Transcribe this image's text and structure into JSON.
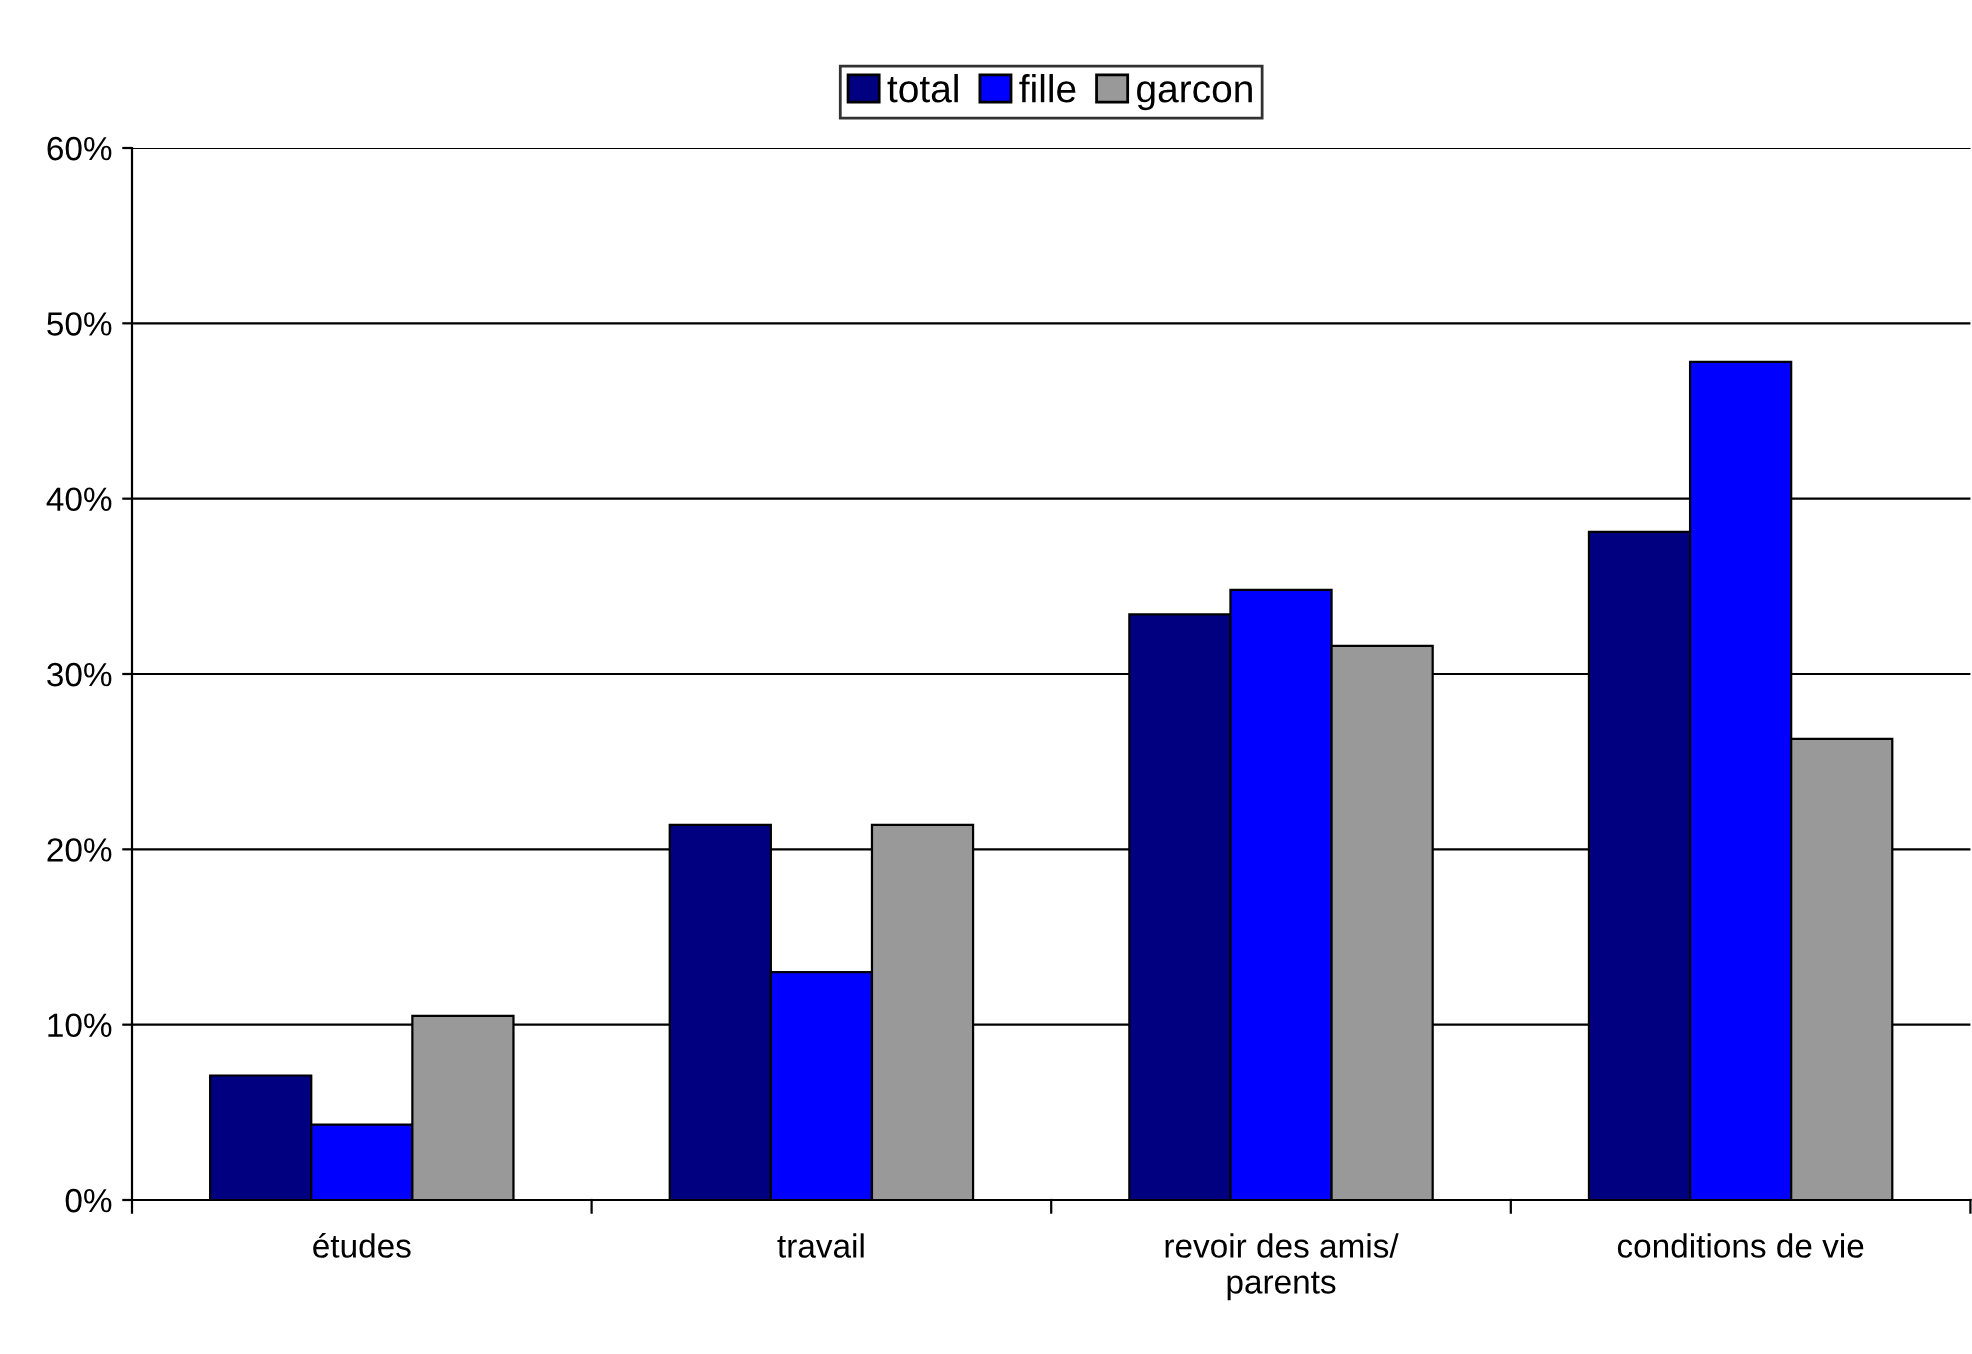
{
  "chart_data": {
    "type": "bar",
    "categories": [
      "études",
      "travail",
      "revoir des amis/\nparents",
      "conditions de vie"
    ],
    "series": [
      {
        "name": "total",
        "color": "#000080",
        "values": [
          7.1,
          21.4,
          33.4,
          38.1
        ]
      },
      {
        "name": "fille",
        "color": "#0000ff",
        "values": [
          4.3,
          13.0,
          34.8,
          47.8
        ]
      },
      {
        "name": "garcon",
        "color": "#999999",
        "values": [
          10.5,
          21.4,
          31.6,
          26.3
        ]
      }
    ],
    "ylim": [
      0,
      60
    ],
    "yticks": [
      {
        "value": 0,
        "label": "0%"
      },
      {
        "value": 10,
        "label": "10%"
      },
      {
        "value": 20,
        "label": "20%"
      },
      {
        "value": 30,
        "label": "30%"
      },
      {
        "value": 40,
        "label": "40%"
      },
      {
        "value": 50,
        "label": "50%"
      },
      {
        "value": 60,
        "label": "60%"
      }
    ],
    "grid": "y",
    "legend": "top"
  }
}
